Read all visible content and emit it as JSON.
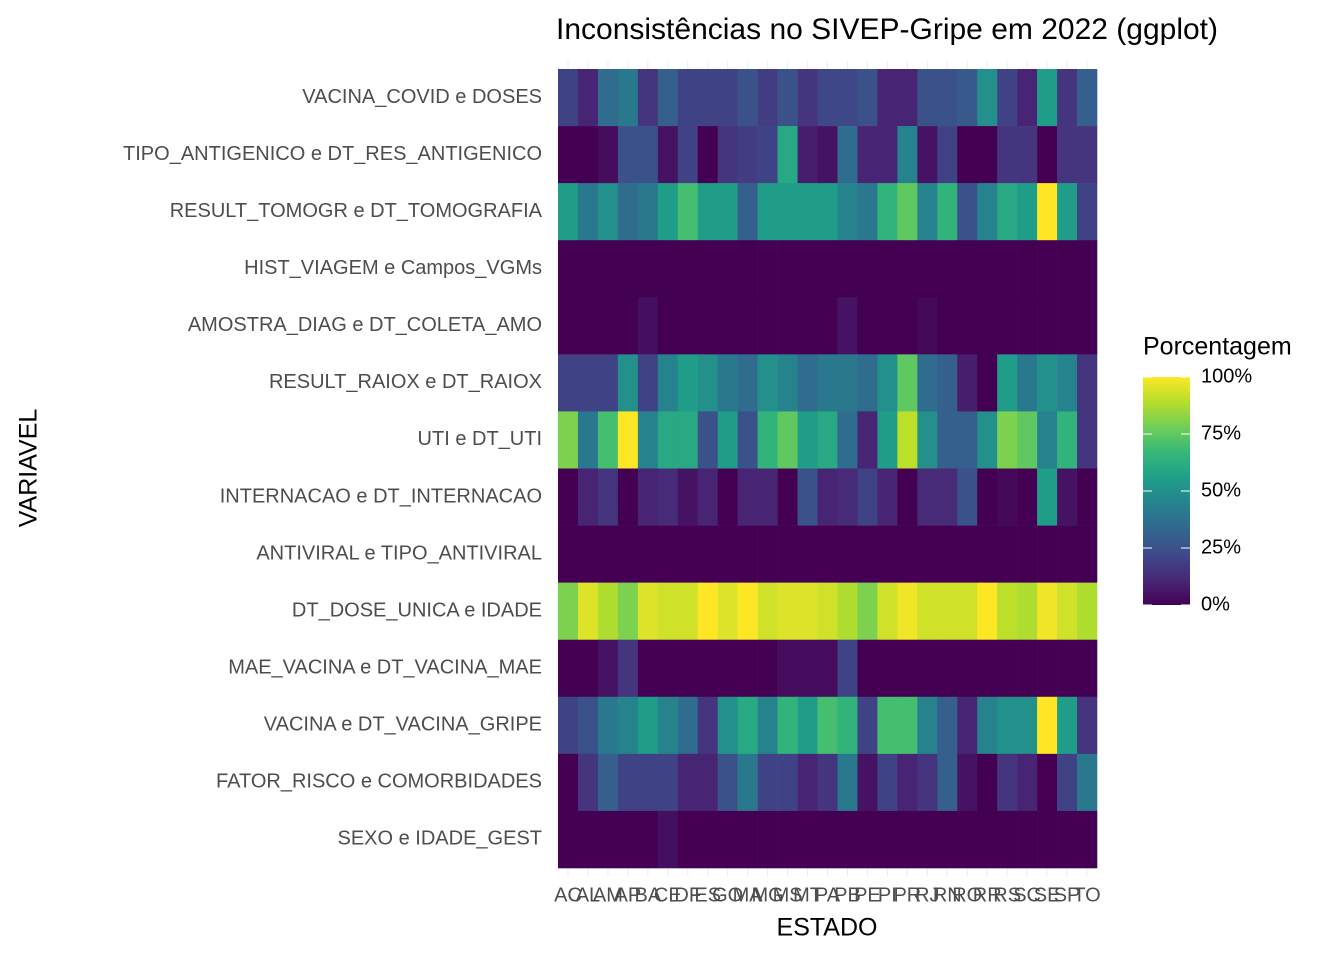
{
  "chart_data": {
    "type": "heatmap",
    "title": "Inconsistências no SIVEP-Gripe em 2022 (ggplot)",
    "x_label": "ESTADO",
    "y_label": "VARIAVEL",
    "x": [
      "AC",
      "AL",
      "AM",
      "AP",
      "BA",
      "CE",
      "DF",
      "ES",
      "GO",
      "MA",
      "MG",
      "MS",
      "MT",
      "PA",
      "PB",
      "PE",
      "PI",
      "PR",
      "RJ",
      "RN",
      "RO",
      "RR",
      "RS",
      "SC",
      "SE",
      "SP",
      "TO"
    ],
    "y": [
      "VACINA_COVID e DOSES",
      "TIPO_ANTIGENICO e DT_RES_ANTIGENICO",
      "RESULT_TOMOGR e DT_TOMOGRAFIA",
      "HIST_VIAGEM e Campos_VGMs",
      "AMOSTRA_DIAG e DT_COLETA_AMO",
      "RESULT_RAIOX e DT_RAIOX",
      "UTI e DT_UTI",
      "INTERNACAO e DT_INTERNACAO",
      "ANTIVIRAL e TIPO_ANTIVIRAL",
      "DT_DOSE_UNICA e IDADE",
      "MAE_VACINA e DT_VACINA_MAE",
      "VACINA e DT_VACINA_GRIPE",
      "FATOR_RISCO e COMORBIDADES",
      "SEXO e IDADE_GEST"
    ],
    "values": [
      [
        20,
        10,
        35,
        40,
        15,
        30,
        20,
        20,
        20,
        25,
        18,
        25,
        15,
        22,
        22,
        25,
        10,
        10,
        25,
        25,
        28,
        50,
        20,
        10,
        55,
        15,
        30
      ],
      [
        0,
        0,
        3,
        25,
        25,
        5,
        20,
        0,
        15,
        18,
        20,
        60,
        8,
        5,
        35,
        10,
        10,
        45,
        5,
        20,
        0,
        0,
        15,
        15,
        0,
        15,
        15
      ],
      [
        55,
        40,
        50,
        35,
        40,
        55,
        70,
        55,
        55,
        30,
        55,
        55,
        55,
        55,
        45,
        40,
        65,
        75,
        45,
        65,
        25,
        45,
        60,
        55,
        100,
        55,
        20
      ],
      [
        0,
        0,
        0,
        0,
        0,
        0,
        0,
        0,
        0,
        0,
        0,
        0,
        0,
        0,
        0,
        0,
        0,
        0,
        0,
        0,
        0,
        0,
        0,
        0,
        0,
        0,
        0
      ],
      [
        0,
        0,
        0,
        0,
        4,
        0,
        0,
        0,
        0,
        0,
        0,
        0,
        0,
        0,
        5,
        0,
        0,
        0,
        2,
        0,
        0,
        0,
        0,
        0,
        0,
        0,
        0
      ],
      [
        20,
        20,
        20,
        50,
        20,
        45,
        55,
        50,
        40,
        35,
        50,
        45,
        35,
        40,
        40,
        35,
        50,
        75,
        35,
        30,
        8,
        0,
        55,
        40,
        50,
        45,
        15
      ],
      [
        80,
        40,
        70,
        100,
        45,
        60,
        60,
        25,
        55,
        25,
        65,
        75,
        55,
        60,
        35,
        10,
        55,
        90,
        50,
        30,
        30,
        50,
        80,
        75,
        45,
        65,
        15
      ],
      [
        0,
        10,
        15,
        0,
        10,
        12,
        5,
        10,
        0,
        10,
        10,
        0,
        25,
        10,
        12,
        20,
        10,
        0,
        12,
        12,
        25,
        0,
        2,
        0,
        55,
        5,
        0
      ],
      [
        0,
        0,
        0,
        0,
        0,
        0,
        0,
        0,
        0,
        0,
        0,
        0,
        0,
        0,
        0,
        0,
        0,
        0,
        0,
        0,
        0,
        0,
        0,
        0,
        0,
        0,
        0
      ],
      [
        80,
        95,
        88,
        80,
        95,
        93,
        93,
        100,
        95,
        100,
        93,
        95,
        95,
        93,
        88,
        80,
        93,
        98,
        93,
        93,
        93,
        100,
        90,
        88,
        98,
        93,
        88
      ],
      [
        0,
        0,
        5,
        15,
        0,
        0,
        0,
        0,
        0,
        0,
        0,
        3,
        3,
        3,
        20,
        0,
        0,
        0,
        0,
        0,
        0,
        0,
        0,
        0,
        0,
        0,
        0
      ],
      [
        20,
        25,
        40,
        45,
        55,
        45,
        35,
        15,
        50,
        60,
        45,
        65,
        55,
        70,
        65,
        20,
        70,
        70,
        45,
        30,
        10,
        45,
        50,
        50,
        100,
        55,
        15
      ],
      [
        0,
        15,
        30,
        20,
        20,
        20,
        10,
        10,
        25,
        40,
        20,
        20,
        10,
        15,
        40,
        5,
        20,
        10,
        15,
        30,
        5,
        0,
        15,
        10,
        0,
        20,
        40
      ],
      [
        0,
        0,
        0,
        0,
        0,
        4,
        0,
        0,
        0,
        0,
        0,
        0,
        0,
        0,
        0,
        0,
        0,
        0,
        0,
        0,
        0,
        0,
        0,
        0,
        0,
        0,
        0
      ]
    ],
    "zlim": [
      0,
      100
    ],
    "zticks": [
      {
        "value": 0,
        "label": "0%"
      },
      {
        "value": 25,
        "label": "25%"
      },
      {
        "value": 50,
        "label": "50%"
      },
      {
        "value": 75,
        "label": "75%"
      },
      {
        "value": 100,
        "label": "100%"
      }
    ],
    "legend_title": "Porcentagem",
    "colorscale": [
      "#440154",
      "#482878",
      "#3e4989",
      "#31688e",
      "#26828e",
      "#1f9e89",
      "#35b779",
      "#6ece58",
      "#b5de2b",
      "#fde725"
    ]
  }
}
